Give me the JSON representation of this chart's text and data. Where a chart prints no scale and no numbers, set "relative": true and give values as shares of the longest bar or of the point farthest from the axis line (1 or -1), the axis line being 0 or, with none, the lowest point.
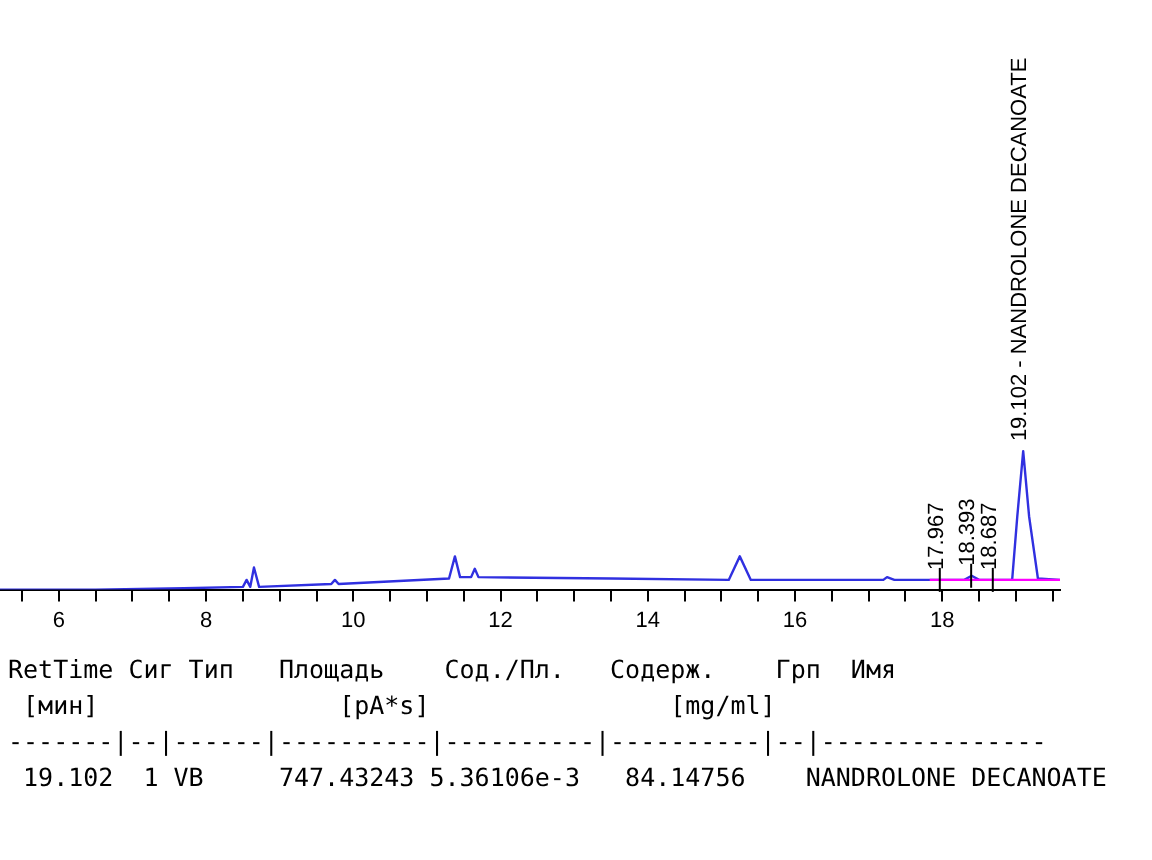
{
  "chart_data": {
    "type": "line",
    "relative": true,
    "xlim": [
      5.2,
      19.6
    ],
    "xticks": [
      {
        "value": 5.5,
        "label": null
      },
      6,
      {
        "value": 6.5,
        "label": null
      },
      {
        "value": 7,
        "label": null
      },
      {
        "value": 7.5,
        "label": null
      },
      8,
      {
        "value": 8.5,
        "label": null
      },
      {
        "value": 9,
        "label": null
      },
      {
        "value": 9.5,
        "label": null
      },
      10,
      {
        "value": 10.5,
        "label": null
      },
      {
        "value": 11,
        "label": null
      },
      {
        "value": 11.5,
        "label": null
      },
      12,
      {
        "value": 12.5,
        "label": null
      },
      {
        "value": 13,
        "label": null
      },
      {
        "value": 13.5,
        "label": null
      },
      14,
      {
        "value": 14.5,
        "label": null
      },
      {
        "value": 15,
        "label": null
      },
      {
        "value": 15.5,
        "label": null
      },
      16,
      {
        "value": 16.5,
        "label": null
      },
      {
        "value": 17,
        "label": null
      },
      {
        "value": 17.5,
        "label": null
      },
      18,
      {
        "value": 18.5,
        "label": null
      },
      {
        "value": 19,
        "label": null
      },
      {
        "value": 19.5,
        "label": null
      }
    ],
    "tick_labels": "x",
    "grid": false,
    "legend": false,
    "marker": "none",
    "series": [
      {
        "color": "#3030e0",
        "x": [
          5.2,
          6.5,
          7.7,
          8.5,
          8.55,
          8.6,
          8.65,
          8.72,
          9.7,
          9.75,
          9.8,
          11.3,
          11.38,
          11.45,
          11.6,
          11.65,
          11.7,
          13.5,
          15.1,
          15.25,
          15.4,
          17.2,
          17.25,
          17.35,
          18.3,
          18.4,
          18.5,
          18.95,
          19.02,
          19.1,
          19.18,
          19.3,
          19.6
        ],
        "values": [
          0,
          0,
          0.01,
          0.02,
          0.07,
          0.02,
          0.16,
          0.02,
          0.04,
          0.07,
          0.04,
          0.08,
          0.24,
          0.09,
          0.09,
          0.15,
          0.09,
          0.08,
          0.07,
          0.24,
          0.07,
          0.07,
          0.09,
          0.07,
          0.07,
          0.1,
          0.07,
          0.07,
          0.53,
          1,
          0.53,
          0.08,
          0.07
        ]
      },
      {
        "color": "#ff00ff",
        "x": [
          17.83,
          19.6
        ],
        "values": [
          0.07,
          0.07
        ]
      }
    ],
    "annotations": [
      {
        "text": "17.967",
        "x": 17.967,
        "y": 0.07
      },
      {
        "text": "18.393",
        "x": 18.393,
        "y": 0.1
      },
      {
        "text": "18.687",
        "x": 18.687,
        "y": 0.07
      },
      {
        "text": "19.102 - NANDROLONE DECANOATE",
        "x": 19.102,
        "y": 1
      },
      "RetTime Сиг Тип   Площадь    Сод./Пл.   Содерж.    Грп  Имя",
      " [мин]                [pA*s]                [mg/ml]",
      "-------|--|------|----------|----------|----------|--|---------------",
      " 19.102  1 VB     747.43243 5.36106e-3   84.14756    NANDROLONE DECANOATE"
    ]
  }
}
